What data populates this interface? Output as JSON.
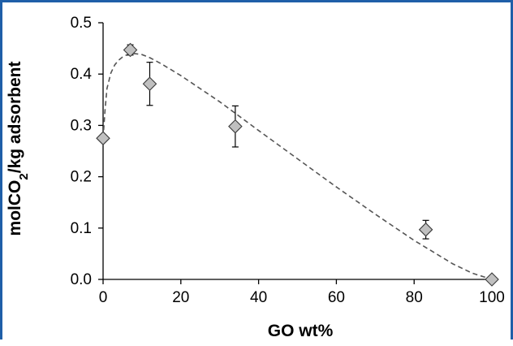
{
  "chart_data": {
    "type": "scatter",
    "title": "",
    "xlabel": "GO wt%",
    "ylabel_parts": {
      "pre": "molCO",
      "sub": "2",
      "post": "/kg adsorbent"
    },
    "xlim": [
      0,
      100
    ],
    "ylim": [
      0.0,
      0.5
    ],
    "xticks": [
      0,
      20,
      40,
      60,
      80,
      100
    ],
    "xtick_labels": [
      "0",
      "20",
      "40",
      "60",
      "80",
      "100"
    ],
    "yticks": [
      0.0,
      0.1,
      0.2,
      0.3,
      0.4,
      0.5
    ],
    "ytick_labels": [
      "0.0",
      "0.1",
      "0.2",
      "0.3",
      "0.4",
      "0.5"
    ],
    "grid": false,
    "legend": "none",
    "marker": "diamond",
    "marker_color": "#c0c0c0",
    "points": [
      {
        "x": 0,
        "y": 0.275,
        "err": 0.0
      },
      {
        "x": 7,
        "y": 0.447,
        "err": 0.01
      },
      {
        "x": 12,
        "y": 0.381,
        "err": 0.042
      },
      {
        "x": 34,
        "y": 0.298,
        "err": 0.04
      },
      {
        "x": 83,
        "y": 0.097,
        "err": 0.018
      },
      {
        "x": 100,
        "y": 0.0,
        "err": 0.0
      }
    ],
    "fit_curve": {
      "style": "dashed",
      "color": "#555555",
      "x": [
        0,
        0.5,
        1,
        2,
        3,
        4,
        5,
        6,
        7,
        8,
        10,
        12,
        15,
        20,
        30,
        40,
        50,
        60,
        70,
        80,
        90,
        95,
        100
      ],
      "y": [
        0.275,
        0.33,
        0.372,
        0.402,
        0.418,
        0.427,
        0.433,
        0.437,
        0.439,
        0.44,
        0.438,
        0.432,
        0.42,
        0.397,
        0.346,
        0.29,
        0.235,
        0.18,
        0.127,
        0.076,
        0.03,
        0.012,
        0.0
      ]
    }
  }
}
